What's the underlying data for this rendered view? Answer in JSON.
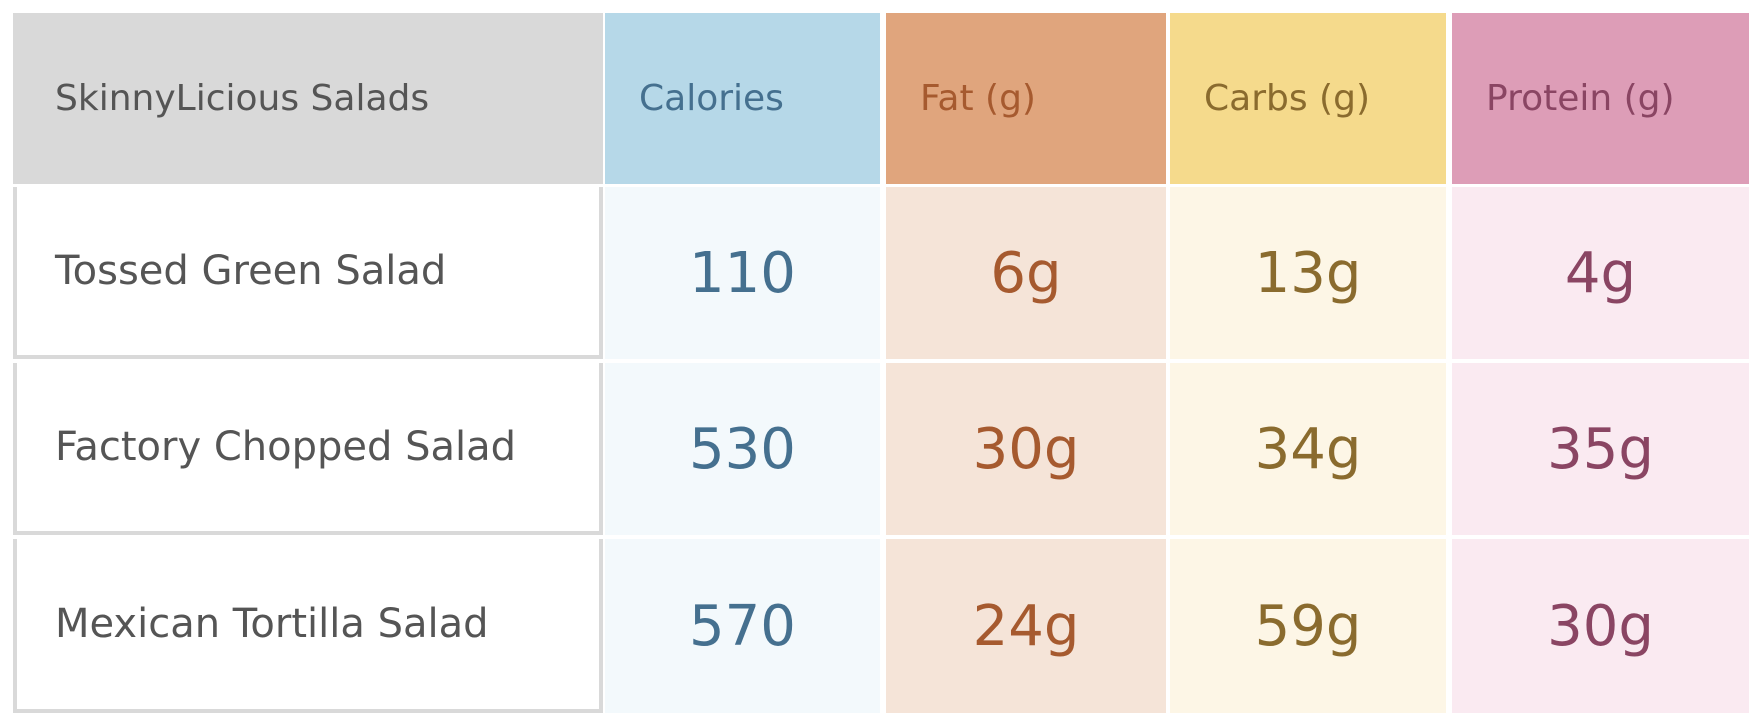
{
  "table": {
    "header": [
      "SkinnyLicious Salads",
      "Calories",
      "Fat (g)",
      "Carbs (g)",
      "Protein (g)"
    ],
    "rows": [
      [
        "Tossed Green Salad",
        "110",
        "6g",
        "13g",
        "4g"
      ],
      [
        "Factory Chopped Salad",
        "530",
        "30g",
        "34g",
        "35g"
      ],
      [
        "Mexican Tortilla Salad",
        "570",
        "24g",
        "59g",
        "30g"
      ]
    ]
  }
}
